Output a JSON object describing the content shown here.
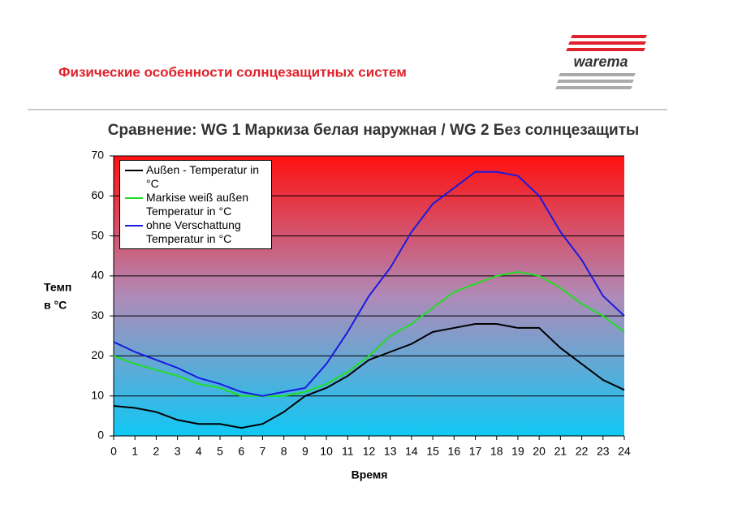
{
  "header": {
    "title": "Физические особенности солнцезащитных систем",
    "logo": "warema"
  },
  "chart_data": {
    "type": "line",
    "title": "Сравнение: WG 1 Маркиза белая наружная / WG 2 Без солнцезащиты",
    "x_label": "Время",
    "y_label": [
      "Темп",
      "в °C"
    ],
    "x": [
      0,
      1,
      2,
      3,
      4,
      5,
      6,
      7,
      8,
      9,
      10,
      11,
      12,
      13,
      14,
      15,
      16,
      17,
      18,
      19,
      20,
      21,
      22,
      23,
      24
    ],
    "xlim": [
      0,
      24
    ],
    "xticks": [
      0,
      1,
      2,
      3,
      4,
      5,
      6,
      7,
      8,
      9,
      10,
      11,
      12,
      13,
      14,
      15,
      16,
      17,
      18,
      19,
      20,
      21,
      22,
      23,
      24
    ],
    "ylim": [
      0,
      70
    ],
    "yticks": [
      0,
      10,
      20,
      30,
      40,
      50,
      60,
      70
    ],
    "grid": true,
    "legend": "upper left",
    "series": [
      {
        "name": "Außen -  Temperatur in °C",
        "color": "#000000",
        "values": [
          7.5,
          7,
          6,
          4,
          3,
          3,
          2,
          3,
          6,
          10,
          12,
          15,
          19,
          21,
          23,
          26,
          27,
          28,
          28,
          27,
          27,
          22,
          18,
          14,
          11.5
        ]
      },
      {
        "name": "Markise weiß außen Temperatur in °C",
        "color": "#22dd22",
        "values": [
          20,
          18,
          16.5,
          15,
          13,
          12,
          10,
          10,
          10,
          11,
          13,
          16,
          20,
          25,
          28,
          32,
          36,
          38,
          40,
          41,
          40,
          37,
          33,
          30,
          26
        ]
      },
      {
        "name": "ohne Verschattung Temperatur in °C",
        "color": "#1a1adf",
        "values": [
          23.5,
          21,
          19,
          17,
          14.5,
          13,
          11,
          10,
          11,
          12,
          18,
          26,
          35,
          42,
          51,
          58,
          62,
          66,
          66,
          65,
          60,
          51,
          44,
          35,
          30
        ]
      }
    ]
  }
}
